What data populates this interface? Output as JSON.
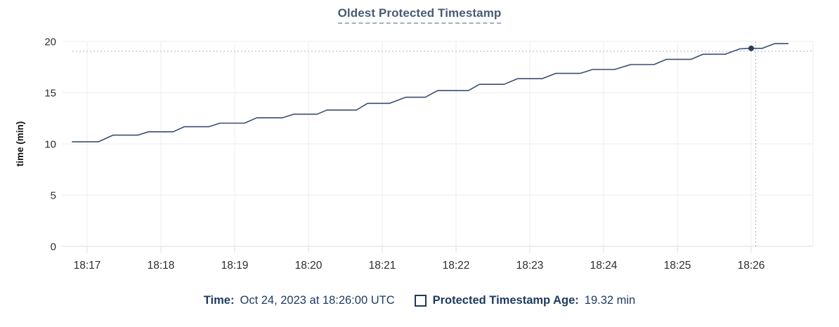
{
  "title": "Oldest Protected Timestamp",
  "colors": {
    "title_text": "#475b74",
    "title_underline": "#9fb0c3",
    "series_line": "#3a4e6e",
    "hover_dot": "#2c3e59",
    "crosshair": "#a3b6c6",
    "grid": "#ededed",
    "axis_line": "#dcdcdc",
    "tick_text": "#2d2d2d",
    "axis_title_text": "#111111",
    "legend_text": "#1c3a5e"
  },
  "chart_data": {
    "type": "line",
    "title": "Oldest Protected Timestamp",
    "xlabel": "",
    "ylabel": "time (min)",
    "ylim": [
      0,
      20
    ],
    "yticks": [
      0,
      5,
      10,
      15,
      20
    ],
    "xtick_labels": [
      "18:17",
      "18:18",
      "18:19",
      "18:20",
      "18:21",
      "18:22",
      "18:23",
      "18:24",
      "18:25",
      "18:26"
    ],
    "xtick_interval_sec": 60,
    "x_domain_sec": [
      -20.6,
      590.3
    ],
    "x_unit": "seconds after 18:17:00",
    "grid": true,
    "legend_position": "bottom",
    "series": [
      {
        "name": "Protected Timestamp Age",
        "unit": "min",
        "color": "#3a4e6e",
        "points": [
          [
            -12,
            10.2
          ],
          [
            9,
            10.2
          ],
          [
            21,
            10.85
          ],
          [
            41,
            10.85
          ],
          [
            50,
            11.18
          ],
          [
            70,
            11.18
          ],
          [
            79,
            11.67
          ],
          [
            99,
            11.67
          ],
          [
            108,
            12.02
          ],
          [
            128,
            12.02
          ],
          [
            138,
            12.55
          ],
          [
            159,
            12.55
          ],
          [
            168,
            12.9
          ],
          [
            187,
            12.9
          ],
          [
            195,
            13.3
          ],
          [
            219,
            13.3
          ],
          [
            228,
            13.95
          ],
          [
            246,
            13.95
          ],
          [
            259,
            14.55
          ],
          [
            275,
            14.55
          ],
          [
            285,
            15.2
          ],
          [
            310,
            15.2
          ],
          [
            319,
            15.81
          ],
          [
            339,
            15.81
          ],
          [
            350,
            16.36
          ],
          [
            370,
            16.36
          ],
          [
            381,
            16.88
          ],
          [
            401,
            16.88
          ],
          [
            411,
            17.26
          ],
          [
            429,
            17.26
          ],
          [
            442,
            17.74
          ],
          [
            461,
            17.74
          ],
          [
            471,
            18.25
          ],
          [
            491,
            18.25
          ],
          [
            501,
            18.75
          ],
          [
            519,
            18.75
          ],
          [
            531,
            19.28
          ],
          [
            540,
            19.32
          ],
          [
            549,
            19.32
          ],
          [
            559,
            19.78
          ],
          [
            570,
            19.78
          ]
        ]
      }
    ],
    "hover_point": {
      "t_sec": 540,
      "time": "Oct 24, 2023 at 18:26:00 UTC",
      "value_min": 19.32
    },
    "crosshair": {
      "t_sec": 543.7,
      "value_min": 19.04
    }
  },
  "footer": {
    "time_label": "Time:",
    "time_value": "Oct 24, 2023 at 18:26:00 UTC",
    "series_label": "Protected Timestamp Age:",
    "series_value": "19.32 min"
  }
}
